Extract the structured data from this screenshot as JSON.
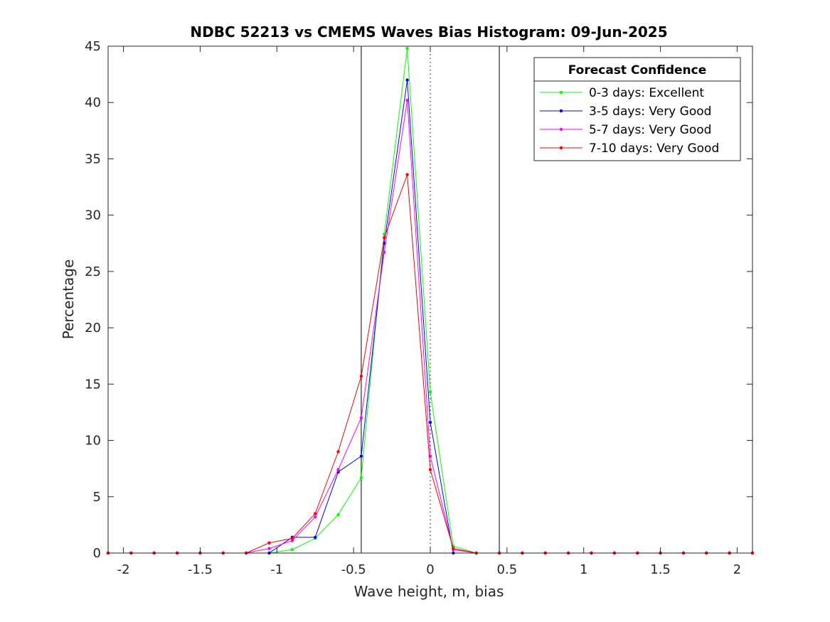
{
  "chart_data": {
    "type": "line",
    "title": "NDBC 52213 vs CMEMS Waves Bias Histogram: 09-Jun-2025",
    "xlabel": "Wave height, m, bias",
    "ylabel": "Percentage",
    "xlim": [
      -2.1,
      2.1
    ],
    "ylim": [
      0,
      45
    ],
    "xticks": [
      -2,
      -1.5,
      -1,
      -0.5,
      0,
      0.5,
      1,
      1.5,
      2
    ],
    "xtick_labels": [
      "-2",
      "-1.5",
      "-1",
      "-0.5",
      "0",
      "0.5",
      "1",
      "1.5",
      "2"
    ],
    "yticks": [
      0,
      5,
      10,
      15,
      20,
      25,
      30,
      35,
      40,
      45
    ],
    "ytick_labels": [
      "0",
      "5",
      "10",
      "15",
      "20",
      "25",
      "30",
      "35",
      "40",
      "45"
    ],
    "grid": false,
    "reference_lines": {
      "solid": [
        -0.45,
        0.45
      ],
      "dotted": [
        0
      ]
    },
    "legend": {
      "title": "Forecast Confidence",
      "placement": "top-right"
    },
    "x": [
      -2.1,
      -1.95,
      -1.8,
      -1.65,
      -1.5,
      -1.35,
      -1.2,
      -1.05,
      -0.9,
      -0.75,
      -0.6,
      -0.45,
      -0.3,
      -0.15,
      0,
      0.15,
      0.3,
      0.45,
      0.6,
      0.75,
      0.9,
      1.05,
      1.2,
      1.35,
      1.5,
      1.65,
      1.8,
      1.95,
      2.1
    ],
    "series": [
      {
        "name": "0-3 days: Excellent",
        "color": "#00ff00",
        "values": [
          0,
          0,
          0,
          0,
          0,
          0,
          0,
          0,
          0.3,
          1.3,
          3.4,
          6.7,
          28.3,
          44.8,
          14.3,
          0.6,
          0,
          0,
          0,
          0,
          0,
          0,
          0,
          0,
          0,
          0,
          0,
          0,
          0
        ]
      },
      {
        "name": "3-5 days: Very Good",
        "color": "#0000ff",
        "values": [
          0,
          0,
          0,
          0,
          0,
          0,
          0,
          0,
          1.4,
          1.4,
          7.2,
          8.6,
          27.5,
          42.0,
          11.6,
          0,
          0,
          0,
          0,
          0,
          0,
          0,
          0,
          0,
          0,
          0,
          0,
          0,
          0
        ]
      },
      {
        "name": "5-7 days: Very Good",
        "color": "#ff00ff",
        "values": [
          0,
          0,
          0,
          0,
          0,
          0,
          0,
          0.4,
          1.1,
          3.2,
          7.4,
          12.0,
          26.7,
          40.2,
          8.6,
          0.3,
          0,
          0,
          0,
          0,
          0,
          0,
          0,
          0,
          0,
          0,
          0,
          0,
          0
        ]
      },
      {
        "name": "7-10 days: Very Good",
        "color": "#ff0000",
        "values": [
          0,
          0,
          0,
          0,
          0,
          0,
          0,
          0.9,
          1.3,
          3.5,
          9.0,
          15.7,
          28.0,
          33.6,
          7.4,
          0.4,
          0,
          0,
          0,
          0,
          0,
          0,
          0,
          0,
          0,
          0,
          0,
          0,
          0
        ]
      }
    ]
  }
}
